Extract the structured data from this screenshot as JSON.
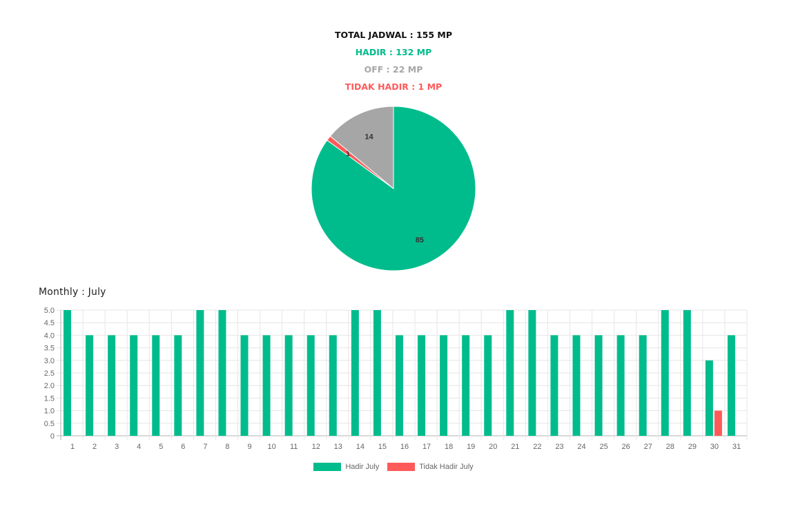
{
  "summary": {
    "total": "TOTAL JADWAL : 155 MP",
    "hadir": "HADIR : 132 MP",
    "off": "OFF : 22 MP",
    "tidak_hadir": "TIDAK HADIR : 1 MP"
  },
  "monthly_title": "Monthly : July",
  "colors": {
    "hadir": "#00bc8c",
    "off": "#a6a6a6",
    "tidak_hadir": "#ff5a5a"
  },
  "chart_data": [
    {
      "type": "pie",
      "slices": [
        {
          "label": "",
          "value": 85,
          "color": "#00bc8c"
        },
        {
          "label": "",
          "value": 1,
          "color": "#ff5a5a"
        },
        {
          "label": "",
          "value": 14,
          "color": "#a6a6a6"
        }
      ]
    },
    {
      "type": "bar",
      "categories": [
        "1",
        "2",
        "3",
        "4",
        "5",
        "6",
        "7",
        "8",
        "9",
        "10",
        "11",
        "12",
        "13",
        "14",
        "15",
        "16",
        "17",
        "18",
        "19",
        "20",
        "21",
        "22",
        "23",
        "24",
        "25",
        "26",
        "27",
        "28",
        "29",
        "30",
        "31"
      ],
      "series": [
        {
          "name": "Hadir July",
          "color": "#00bc8c",
          "values": [
            5,
            4,
            4,
            4,
            4,
            4,
            5,
            5,
            4,
            4,
            4,
            4,
            4,
            5,
            5,
            4,
            4,
            4,
            4,
            4,
            5,
            5,
            4,
            4,
            4,
            4,
            4,
            5,
            5,
            3,
            4
          ]
        },
        {
          "name": "Tidak Hadir July",
          "color": "#ff5a5a",
          "values": [
            0,
            0,
            0,
            0,
            0,
            0,
            0,
            0,
            0,
            0,
            0,
            0,
            0,
            0,
            0,
            0,
            0,
            0,
            0,
            0,
            0,
            0,
            0,
            0,
            0,
            0,
            0,
            0,
            0,
            1,
            0
          ]
        }
      ],
      "ylim": [
        0,
        5
      ],
      "yticks": [
        "0",
        "0.5",
        "1.0",
        "1.5",
        "2.0",
        "2.5",
        "3.0",
        "3.5",
        "4.0",
        "4.5",
        "5.0"
      ],
      "grid": true,
      "legend": "bottom"
    }
  ]
}
